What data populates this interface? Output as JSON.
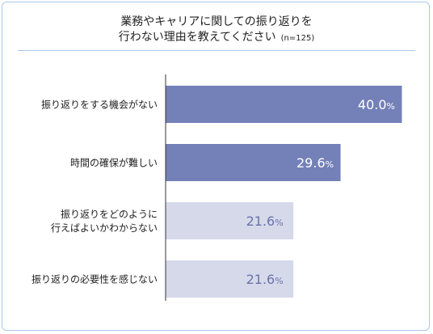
{
  "title_line1": "業務やキャリアに関しての振り返りを",
  "title_line2": "行わない理由を教えてください",
  "sample_size": "(n=125)",
  "chart_data": {
    "type": "bar",
    "orientation": "horizontal",
    "categories": [
      [
        "振り返りをする機会がない"
      ],
      [
        "時間の確保が難しい"
      ],
      [
        "振り返りをどのように",
        "行えばよいかわからない"
      ],
      [
        "振り返りの必要性を感じない"
      ]
    ],
    "values": [
      40.0,
      29.6,
      21.6,
      21.6
    ],
    "value_labels": [
      {
        "num": "40.0",
        "pct": "%"
      },
      {
        "num": "29.6",
        "pct": "%"
      },
      {
        "num": "21.6",
        "pct": "%"
      },
      {
        "num": "21.6",
        "pct": "%"
      }
    ],
    "xlim": [
      0,
      40.0
    ],
    "colors": {
      "highlight_bar": "#7480b8",
      "muted_bar": "#d5d9ea",
      "highlight_label": "#ffffff",
      "muted_label": "#6a74a8",
      "axis": "#333333"
    },
    "highlight_count": 2
  }
}
